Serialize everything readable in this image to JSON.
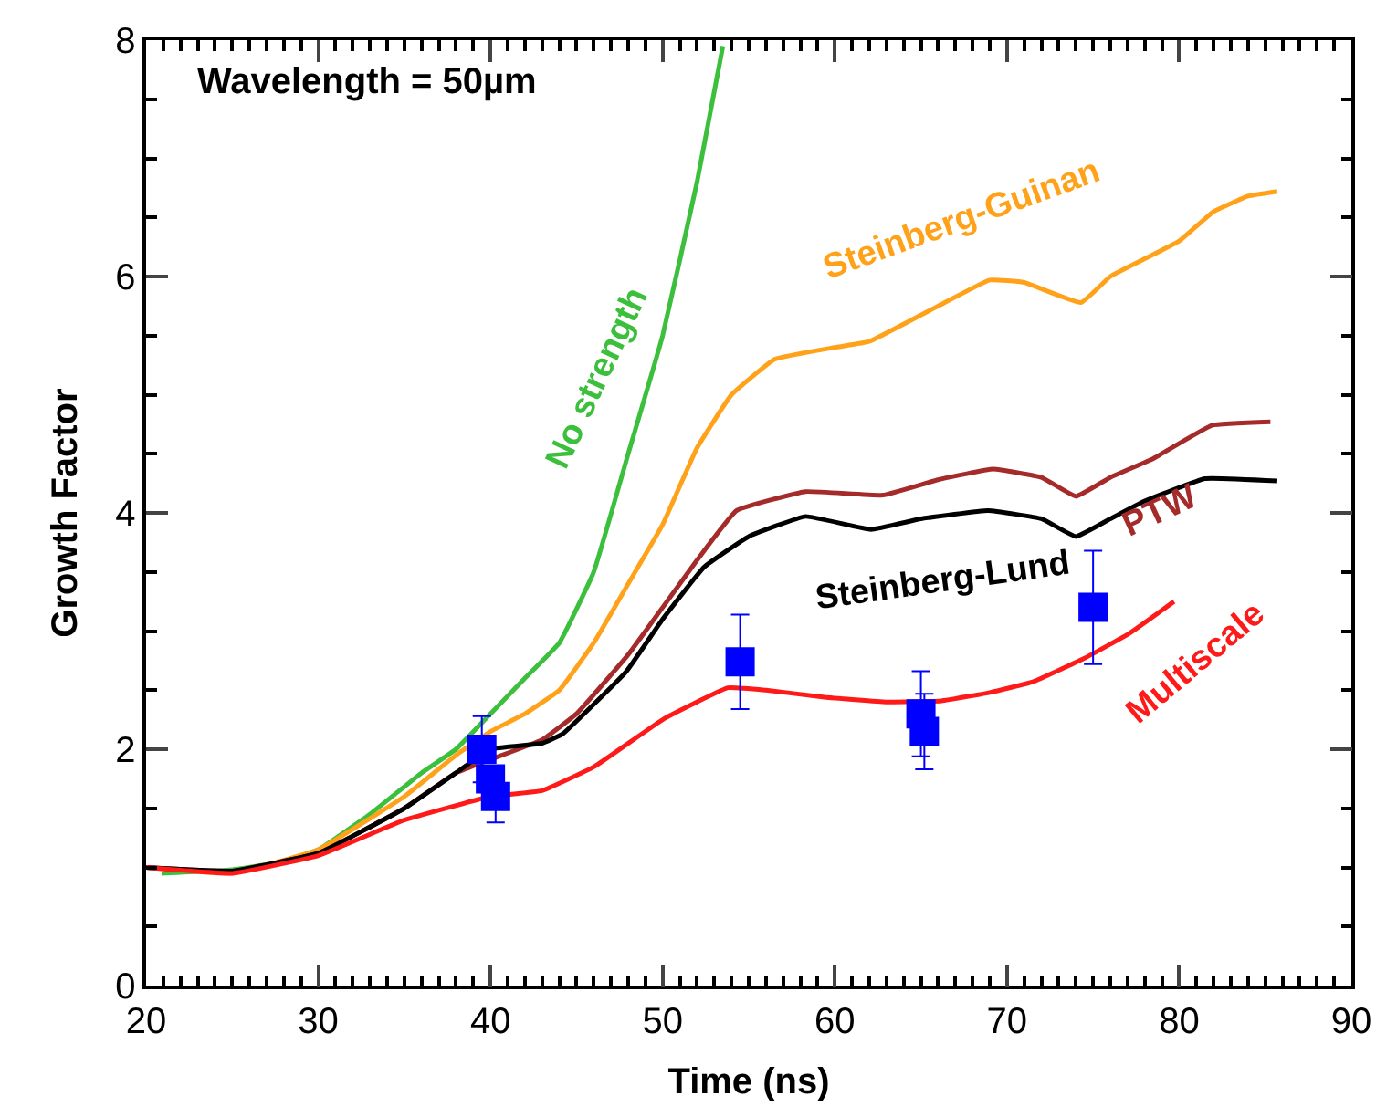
{
  "chart_data": {
    "type": "line",
    "xlabel": "Time (ns)",
    "ylabel": "Growth Factor",
    "xlim": [
      20,
      90
    ],
    "xticks": [
      20,
      30,
      40,
      50,
      60,
      70,
      80,
      90
    ],
    "ylim": [
      0,
      8
    ],
    "yticks": [
      0,
      2,
      4,
      6,
      8
    ],
    "legend": false,
    "marker": "none",
    "line_style": "solid",
    "annotations": [
      "Wavelength = 50µm"
    ],
    "series": [
      {
        "name": "No strength",
        "color": "#3cbf3c",
        "x": [
          20.9,
          25,
          28,
          30,
          33,
          36,
          38,
          40,
          42,
          44,
          46,
          48,
          50,
          52,
          53.5
        ],
        "values": [
          0.95,
          0.98,
          1.05,
          1.15,
          1.45,
          1.8,
          2.0,
          2.3,
          2.6,
          2.9,
          3.5,
          4.5,
          5.5,
          6.8,
          7.95
        ]
      },
      {
        "name": "Steinberg-Guinan",
        "color": "#ffa21a",
        "x": [
          20,
          25,
          30,
          35,
          38,
          40,
          42,
          44,
          46,
          48,
          50,
          52,
          54,
          56.5,
          60,
          62,
          66,
          69,
          71,
          74.3,
          76,
          78,
          80,
          82,
          84,
          85.7
        ],
        "values": [
          1.0,
          0.95,
          1.15,
          1.6,
          1.95,
          2.15,
          2.3,
          2.5,
          2.9,
          3.4,
          3.9,
          4.55,
          5.0,
          5.3,
          5.4,
          5.45,
          5.75,
          5.97,
          5.95,
          5.78,
          6.0,
          6.15,
          6.3,
          6.55,
          6.68,
          6.72
        ]
      },
      {
        "name": "PTW",
        "color": "#a52a2a",
        "x": [
          20,
          25,
          30,
          35,
          38,
          43,
          45,
          48,
          50,
          52,
          54.3,
          58.3,
          62.8,
          66,
          69.2,
          72,
          74,
          76,
          78.5,
          81.9,
          85.3
        ],
        "values": [
          1.0,
          0.97,
          1.12,
          1.5,
          1.8,
          2.08,
          2.3,
          2.8,
          3.2,
          3.6,
          4.02,
          4.18,
          4.15,
          4.28,
          4.37,
          4.3,
          4.14,
          4.3,
          4.46,
          4.74,
          4.77
        ]
      },
      {
        "name": "Steinberg-Lund",
        "color": "#000000",
        "x": [
          20,
          25,
          30,
          35,
          38,
          40,
          43,
          44.2,
          47.9,
          50,
          52.4,
          55,
          58.3,
          62.1,
          65,
          68.9,
          72,
          74,
          76,
          78,
          81.5,
          85.7
        ],
        "values": [
          1.0,
          0.97,
          1.12,
          1.5,
          1.8,
          2.0,
          2.05,
          2.13,
          2.66,
          3.1,
          3.54,
          3.8,
          3.97,
          3.86,
          3.95,
          4.02,
          3.95,
          3.8,
          3.95,
          4.1,
          4.29,
          4.27
        ]
      },
      {
        "name": "Multiscale",
        "color": "#ff1a1a",
        "x": [
          20,
          25,
          30,
          35,
          40,
          43,
          46,
          50.1,
          53.8,
          56,
          59.4,
          63,
          66.2,
          69,
          71.5,
          74.5,
          77.1,
          79.7
        ],
        "values": [
          1.0,
          0.95,
          1.1,
          1.4,
          1.6,
          1.65,
          1.85,
          2.26,
          2.52,
          2.5,
          2.44,
          2.4,
          2.41,
          2.48,
          2.57,
          2.77,
          2.98,
          3.25
        ]
      },
      {
        "type": "scatter",
        "marker": "square",
        "color": "#0000ff",
        "x": [
          39.5,
          40,
          40.3,
          54.5,
          65,
          65.2,
          75
        ],
        "values": [
          2.0,
          1.75,
          1.6,
          2.74,
          2.3,
          2.15,
          3.2
        ],
        "errors": [
          0.28,
          null,
          0.22,
          0.4,
          0.36,
          0.32,
          0.48
        ]
      }
    ]
  }
}
